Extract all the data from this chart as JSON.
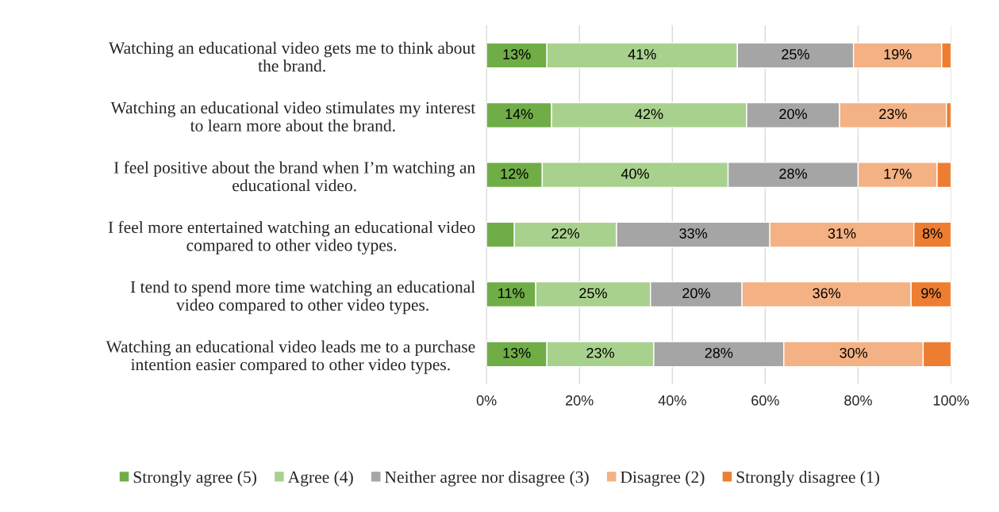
{
  "chart_data": {
    "type": "bar",
    "orientation": "horizontal",
    "stacked": true,
    "categories": [
      "Watching an educational video gets me to think about\nthe brand.",
      "Watching an educational video stimulates my interest\nto learn more about the brand.",
      "I feel positive about the brand when I’m watching an\neducational video.",
      "I feel more entertained watching an educational video\ncompared to other video types.",
      "I tend to spend more time watching an educational\nvideo compared to other video types.",
      "Watching an educational video leads me to a purchase\nintention easier compared to other video types."
    ],
    "series": [
      {
        "name": "Strongly agree (5)",
        "color": "#70ad47",
        "values": [
          13,
          14,
          12,
          6,
          10.6,
          13
        ],
        "value_labels": [
          "13%",
          "14%",
          "12%",
          null,
          "11%",
          "13%"
        ]
      },
      {
        "name": "Agree (4)",
        "color": "#a9d18e",
        "values": [
          41,
          42,
          40,
          22,
          24.7,
          23
        ],
        "value_labels": [
          "41%",
          "42%",
          "40%",
          "22%",
          "25%",
          "23%"
        ]
      },
      {
        "name": "Neither agree nor disagree (3)",
        "color": "#a5a5a5",
        "values": [
          25,
          20,
          28,
          33,
          19.7,
          28
        ],
        "value_labels": [
          "25%",
          "20%",
          "28%",
          "33%",
          "20%",
          "28%"
        ]
      },
      {
        "name": "Disagree (2)",
        "color": "#f4b183",
        "values": [
          19,
          23,
          17,
          31,
          36.4,
          30
        ],
        "value_labels": [
          "19%",
          "23%",
          "17%",
          "31%",
          "36%",
          "30%"
        ]
      },
      {
        "name": "Strongly disagree (1)",
        "color": "#ed7d31",
        "values": [
          2,
          1,
          3,
          8,
          8.6,
          6
        ],
        "value_labels": [
          null,
          null,
          null,
          "8%",
          "9%",
          null
        ]
      }
    ],
    "xlim": [
      0,
      100
    ],
    "xticks": [
      {
        "value": 0,
        "label": "0%"
      },
      {
        "value": 20,
        "label": "20%"
      },
      {
        "value": 40,
        "label": "40%"
      },
      {
        "value": 60,
        "label": "60%"
      },
      {
        "value": 80,
        "label": "80%"
      },
      {
        "value": 100,
        "label": "100%"
      }
    ],
    "grid": "x",
    "legend": "bottom"
  }
}
